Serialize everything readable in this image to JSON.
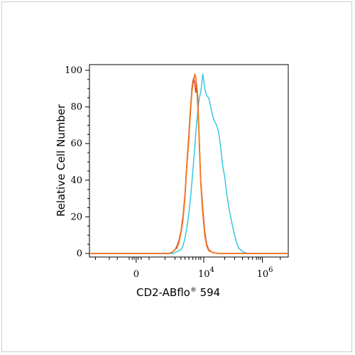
{
  "chart_data": {
    "type": "line",
    "xlabel": "CD2-ABflo",
    "xlabel_suffix": "®",
    "xlabel_tail": " 594",
    "ylabel": "Relative Cell Number",
    "ylim": [
      0,
      100
    ],
    "y_ticks": [
      "0",
      "20",
      "40",
      "60",
      "80",
      "100"
    ],
    "x_ticks": [
      {
        "base": "0",
        "exp": ""
      },
      {
        "base": "10",
        "exp": "4"
      },
      {
        "base": "10",
        "exp": "6"
      }
    ],
    "x_scale": "biexponential",
    "series": [
      {
        "color": "#29c3e0",
        "x": [
          0.38,
          0.42,
          0.44,
          0.46,
          0.47,
          0.48,
          0.49,
          0.5,
          0.51,
          0.52,
          0.53,
          0.535,
          0.54,
          0.545,
          0.55,
          0.555,
          0.56,
          0.565,
          0.57,
          0.575,
          0.58,
          0.585,
          0.59,
          0.6,
          0.61,
          0.62,
          0.63,
          0.64,
          0.65,
          0.66,
          0.67,
          0.68,
          0.69,
          0.7,
          0.71,
          0.72,
          0.73,
          0.74,
          0.75,
          0.76,
          0.77,
          0.78,
          0.8,
          0.85
        ],
        "y": [
          0,
          0,
          1,
          2,
          4,
          8,
          14,
          22,
          32,
          45,
          58,
          66,
          72,
          78,
          83,
          86,
          88,
          93,
          98,
          94,
          90,
          88,
          86,
          85,
          80,
          75,
          72,
          70,
          66,
          58,
          48,
          42,
          33,
          26,
          20,
          15,
          10,
          6,
          3,
          2,
          1,
          0.5,
          0,
          0
        ]
      },
      {
        "color": "#c0282c",
        "x": [
          0.35,
          0.4,
          0.42,
          0.43,
          0.44,
          0.45,
          0.46,
          0.47,
          0.48,
          0.49,
          0.5,
          0.505,
          0.51,
          0.515,
          0.52,
          0.525,
          0.53,
          0.535,
          0.54,
          0.545,
          0.55,
          0.555,
          0.56,
          0.57,
          0.58,
          0.59,
          0.6,
          0.62,
          0.65,
          0.85
        ],
        "y": [
          0,
          0,
          1,
          2,
          4,
          7,
          12,
          20,
          32,
          50,
          65,
          75,
          82,
          90,
          94,
          96,
          93,
          88,
          92,
          85,
          70,
          55,
          40,
          25,
          12,
          5,
          2,
          0.5,
          0,
          0
        ]
      },
      {
        "color": "#f47a22",
        "x": [
          0.35,
          0.4,
          0.42,
          0.43,
          0.44,
          0.45,
          0.46,
          0.47,
          0.48,
          0.49,
          0.5,
          0.505,
          0.51,
          0.515,
          0.52,
          0.525,
          0.53,
          0.535,
          0.54,
          0.545,
          0.55,
          0.555,
          0.56,
          0.57,
          0.58,
          0.59,
          0.6,
          0.62,
          0.65,
          0.85
        ],
        "y": [
          0,
          0,
          1,
          2,
          3,
          6,
          11,
          18,
          30,
          48,
          62,
          72,
          80,
          88,
          92,
          95,
          98,
          96,
          90,
          80,
          68,
          52,
          38,
          22,
          10,
          4,
          1.5,
          0.5,
          0,
          0
        ]
      }
    ]
  }
}
